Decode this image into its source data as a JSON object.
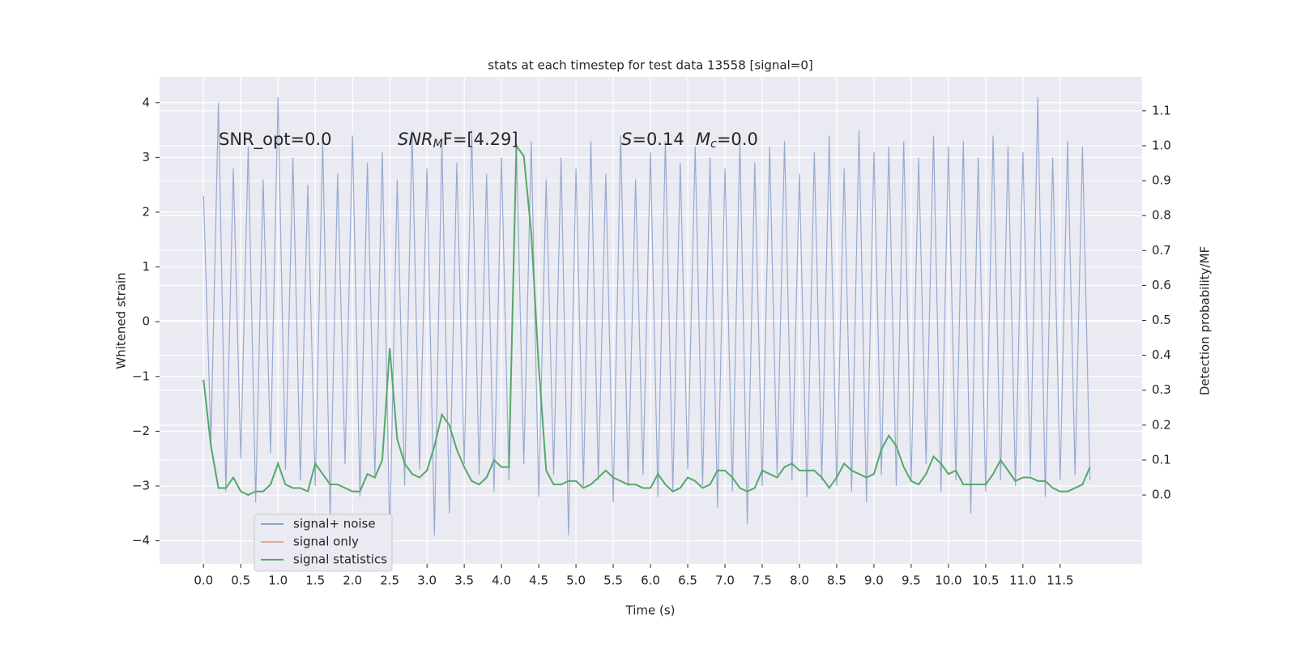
{
  "chart_data": {
    "type": "line",
    "title": "stats at each timestep for test data 13558 [signal=0]",
    "xlabel": "Time (s)",
    "ylabel": "Whitened strain",
    "y2label": "Detection probability/MF",
    "xlim": [
      -0.59,
      12.6
    ],
    "ylim": [
      -4.42,
      4.47
    ],
    "y2lim": [
      -0.197,
      1.197
    ],
    "xticks": [
      {
        "value": 0,
        "label": "0.0"
      },
      {
        "value": 0.5,
        "label": "0.5"
      },
      {
        "value": 1,
        "label": "1.0"
      },
      {
        "value": 1.5,
        "label": "1.5"
      },
      {
        "value": 2,
        "label": "2.0"
      },
      {
        "value": 2.5,
        "label": "2.5"
      },
      {
        "value": 3,
        "label": "3.0"
      },
      {
        "value": 3.5,
        "label": "3.5"
      },
      {
        "value": 4,
        "label": "4.0"
      },
      {
        "value": 4.5,
        "label": "4.5"
      },
      {
        "value": 5,
        "label": "5.0"
      },
      {
        "value": 5.5,
        "label": "5.5"
      },
      {
        "value": 6,
        "label": "6.0"
      },
      {
        "value": 6.5,
        "label": "6.5"
      },
      {
        "value": 7,
        "label": "7.0"
      },
      {
        "value": 7.5,
        "label": "7.5"
      },
      {
        "value": 8,
        "label": "8.0"
      },
      {
        "value": 8.5,
        "label": "8.5"
      },
      {
        "value": 9,
        "label": "9.0"
      },
      {
        "value": 9.5,
        "label": "9.5"
      },
      {
        "value": 10,
        "label": "10.0"
      },
      {
        "value": 10.5,
        "label": "10.5"
      },
      {
        "value": 11,
        "label": "11.0"
      },
      {
        "value": 11.5,
        "label": "11.5"
      }
    ],
    "yticks": [
      {
        "value": -4,
        "label": "−4"
      },
      {
        "value": -3,
        "label": "−3"
      },
      {
        "value": -2,
        "label": "−2"
      },
      {
        "value": -1,
        "label": "−1"
      },
      0,
      1,
      2,
      3,
      4
    ],
    "y2ticks": [
      {
        "value": 0,
        "label": "0.0"
      },
      {
        "value": 0.1,
        "label": "0.1"
      },
      {
        "value": 0.2,
        "label": "0.2"
      },
      {
        "value": 0.3,
        "label": "0.3"
      },
      {
        "value": 0.4,
        "label": "0.4"
      },
      {
        "value": 0.5,
        "label": "0.5"
      },
      {
        "value": 0.6,
        "label": "0.6"
      },
      {
        "value": 0.7,
        "label": "0.7"
      },
      {
        "value": 0.8,
        "label": "0.8"
      },
      {
        "value": 0.9,
        "label": "0.9"
      },
      {
        "value": 1,
        "label": "1.0"
      },
      {
        "value": 1.1,
        "label": "1.1"
      }
    ],
    "grid": true,
    "legend": "lower left",
    "x": [
      0,
      0.1,
      0.2,
      0.3,
      0.4,
      0.5,
      0.6,
      0.7,
      0.8,
      0.9,
      1,
      1.1,
      1.2,
      1.3,
      1.4,
      1.5,
      1.6,
      1.7,
      1.8,
      1.9,
      2,
      2.1,
      2.2,
      2.3,
      2.4,
      2.5,
      2.6,
      2.7,
      2.8,
      2.9,
      3,
      3.1,
      3.2,
      3.3,
      3.4,
      3.5,
      3.6,
      3.7,
      3.8,
      3.9,
      4,
      4.1,
      4.2,
      4.3,
      4.4,
      4.5,
      4.6,
      4.7,
      4.8,
      4.9,
      5,
      5.1,
      5.2,
      5.3,
      5.4,
      5.5,
      5.6,
      5.7,
      5.8,
      5.9,
      6,
      6.1,
      6.2,
      6.3,
      6.4,
      6.5,
      6.6,
      6.7,
      6.8,
      6.9,
      7,
      7.1,
      7.2,
      7.3,
      7.4,
      7.5,
      7.6,
      7.7,
      7.8,
      7.9,
      8,
      8.1,
      8.2,
      8.3,
      8.4,
      8.5,
      8.6,
      8.7,
      8.8,
      8.9,
      9,
      9.1,
      9.2,
      9.3,
      9.4,
      9.5,
      9.6,
      9.7,
      9.8,
      9.9,
      10,
      10.1,
      10.2,
      10.3,
      10.4,
      10.5,
      10.6,
      10.7,
      10.8,
      10.9,
      11,
      11.1,
      11.2,
      11.3,
      11.4,
      11.5,
      11.6,
      11.7,
      11.8,
      11.9
    ],
    "series": [
      {
        "name": "signal+ noise",
        "color": "#8fa3cc",
        "values": [
          2.3,
          -2.2,
          4.0,
          -3.1,
          2.8,
          -2.5,
          3.2,
          -3.3,
          2.6,
          -2.4,
          4.1,
          -2.7,
          3.0,
          -2.9,
          2.5,
          -3.0,
          3.3,
          -3.6,
          2.7,
          -2.6,
          3.4,
          -3.2,
          2.9,
          -2.8,
          3.1,
          -3.9,
          2.6,
          -3.0,
          3.5,
          -2.7,
          2.8,
          -3.9,
          3.3,
          -3.5,
          2.9,
          -2.6,
          3.5,
          -2.8,
          2.7,
          -3.1,
          3.0,
          -2.9,
          3.2,
          -2.6,
          3.3,
          -3.2,
          2.6,
          -2.8,
          3.0,
          -3.9,
          2.8,
          -3.0,
          3.3,
          -2.9,
          2.7,
          -3.3,
          3.4,
          -3.0,
          2.6,
          -2.8,
          3.1,
          -3.2,
          3.3,
          -3.1,
          2.9,
          -2.7,
          3.2,
          -3.0,
          3.0,
          -3.4,
          2.8,
          -3.1,
          3.3,
          -3.7,
          2.9,
          -3.0,
          3.2,
          -2.8,
          3.3,
          -2.9,
          2.7,
          -3.2,
          3.1,
          -2.9,
          3.4,
          -3.0,
          2.8,
          -3.1,
          3.5,
          -3.3,
          3.1,
          -2.8,
          3.2,
          -3.0,
          3.3,
          -2.9,
          3.0,
          -2.6,
          3.4,
          -3.1,
          3.2,
          -2.9,
          3.3,
          -3.5,
          3.0,
          -3.1,
          3.4,
          -2.9,
          3.2,
          -3.0,
          3.1,
          -2.8,
          4.1,
          -3.2,
          3.0,
          -2.9,
          3.3,
          -2.8,
          3.2,
          -2.9
        ]
      },
      {
        "name": "signal only",
        "color": "#e8a98a"
      },
      {
        "name": "signal statistics",
        "color": "#55a868",
        "axis": "y2",
        "values": [
          0.33,
          0.14,
          0.02,
          0.02,
          0.05,
          0.01,
          0.0,
          0.01,
          0.01,
          0.03,
          0.09,
          0.03,
          0.02,
          0.02,
          0.01,
          0.09,
          0.06,
          0.03,
          0.03,
          0.02,
          0.01,
          0.01,
          0.06,
          0.05,
          0.1,
          0.42,
          0.16,
          0.09,
          0.06,
          0.05,
          0.07,
          0.14,
          0.23,
          0.2,
          0.13,
          0.08,
          0.04,
          0.03,
          0.05,
          0.1,
          0.08,
          0.08,
          1.0,
          0.97,
          0.75,
          0.37,
          0.07,
          0.03,
          0.03,
          0.04,
          0.04,
          0.02,
          0.03,
          0.05,
          0.07,
          0.05,
          0.04,
          0.03,
          0.03,
          0.02,
          0.02,
          0.06,
          0.03,
          0.01,
          0.02,
          0.05,
          0.04,
          0.02,
          0.03,
          0.07,
          0.07,
          0.05,
          0.02,
          0.01,
          0.02,
          0.07,
          0.06,
          0.05,
          0.08,
          0.09,
          0.07,
          0.07,
          0.07,
          0.05,
          0.02,
          0.05,
          0.09,
          0.07,
          0.06,
          0.05,
          0.06,
          0.13,
          0.17,
          0.14,
          0.08,
          0.04,
          0.03,
          0.06,
          0.11,
          0.09,
          0.06,
          0.07,
          0.03,
          0.03,
          0.03,
          0.03,
          0.06,
          0.1,
          0.07,
          0.04,
          0.05,
          0.05,
          0.04,
          0.04,
          0.02,
          0.01,
          0.01,
          0.02,
          0.03,
          0.08
        ]
      }
    ],
    "annotations": [
      [
        {
          "text": "SNR_opt=0.0"
        }
      ],
      [
        {
          "text": "SNR",
          "style": "italic"
        },
        {
          "text": "M",
          "style": "sub"
        },
        {
          "text": "F=[4.29]"
        }
      ],
      [
        {
          "text": "S",
          "style": "italic"
        },
        {
          "text": "=0.14"
        }
      ],
      [
        {
          "text": "M",
          "style": "italic"
        },
        {
          "text": "c",
          "style": "sub"
        },
        {
          "text": "=0.0"
        }
      ]
    ]
  }
}
